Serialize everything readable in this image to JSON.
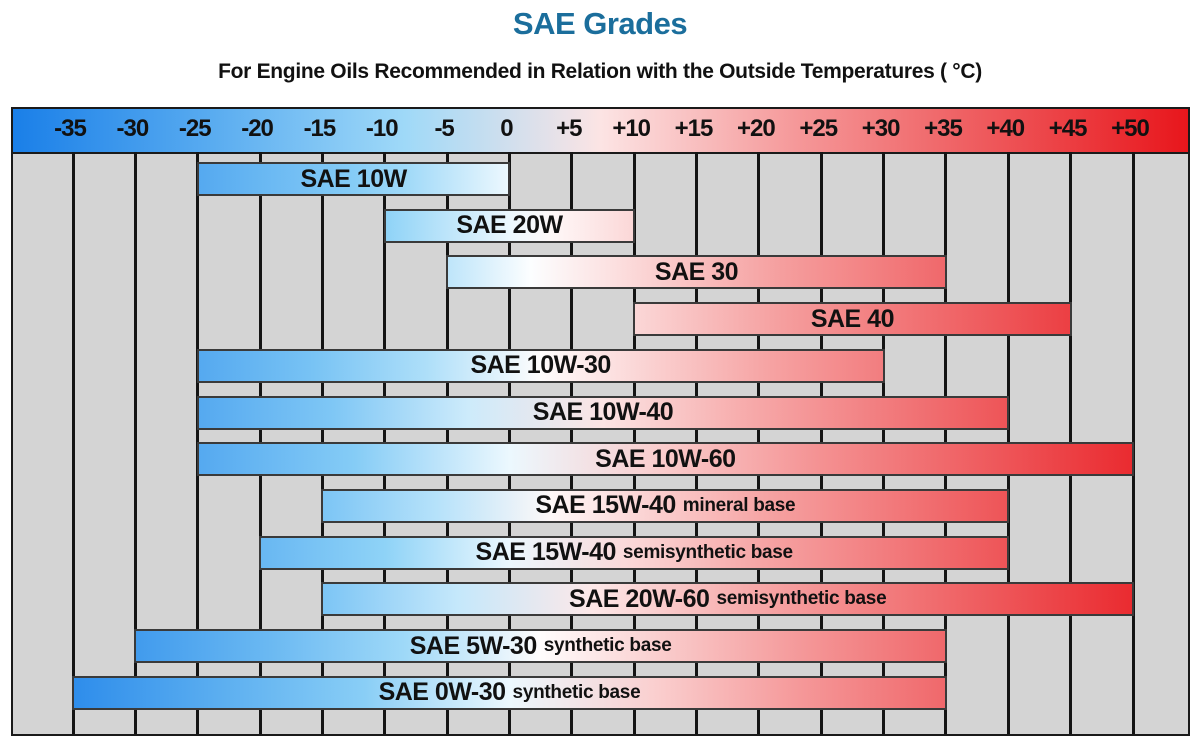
{
  "header": {
    "title": "SAE Grades",
    "title_color": "#1b6e9c",
    "subtitle": "For Engine Oils Recommended in Relation with the Outside Temperatures ( °C)"
  },
  "colors": {
    "cold": "#1a7fe8",
    "cool": "#8fd3f7",
    "neutral": "#ffffff",
    "warm": "#f6a6a6",
    "hot": "#e8161c",
    "grid_background": "#d4d4d4",
    "grid_line": "#141414"
  },
  "chart_data": {
    "type": "range-bar",
    "title": "SAE Grades",
    "subtitle": "For Engine Oils Recommended in Relation with the Outside Temperatures ( °C)",
    "xlabel": "Outside Temperature (°C)",
    "ylabel": "",
    "xlim": [
      -40,
      55
    ],
    "ticks": [
      -35,
      -30,
      -25,
      -20,
      -15,
      -10,
      -5,
      0,
      5,
      10,
      15,
      20,
      25,
      30,
      35,
      40,
      45,
      50
    ],
    "tick_labels": [
      "-35",
      "-30",
      "-25",
      "-20",
      "-15",
      "-10",
      "-5",
      "0",
      "+5",
      "+10",
      "+15",
      "+20",
      "+25",
      "+30",
      "+35",
      "+40",
      "+45",
      "+50"
    ],
    "grid": true,
    "legend": null,
    "series": [
      {
        "grade": "SAE 10W",
        "note": "",
        "min": -25,
        "max": 0
      },
      {
        "grade": "SAE 20W",
        "note": "",
        "min": -10,
        "max": 10
      },
      {
        "grade": "SAE 30",
        "note": "",
        "min": -5,
        "max": 35
      },
      {
        "grade": "SAE 40",
        "note": "",
        "min": 10,
        "max": 45
      },
      {
        "grade": "SAE 10W-30",
        "note": "",
        "min": -25,
        "max": 30
      },
      {
        "grade": "SAE 10W-40",
        "note": "",
        "min": -25,
        "max": 40
      },
      {
        "grade": "SAE 10W-60",
        "note": "",
        "min": -25,
        "max": 50
      },
      {
        "grade": "SAE 15W-40",
        "note": "mineral base",
        "min": -15,
        "max": 40
      },
      {
        "grade": "SAE 15W-40",
        "note": "semisynthetic base",
        "min": -20,
        "max": 40
      },
      {
        "grade": "SAE 20W-60",
        "note": "semisynthetic base",
        "min": -15,
        "max": 50
      },
      {
        "grade": "SAE 5W-30",
        "note": "synthetic base",
        "min": -30,
        "max": 35
      },
      {
        "grade": "SAE 0W-30",
        "note": "synthetic base",
        "min": -35,
        "max": 35
      }
    ]
  }
}
